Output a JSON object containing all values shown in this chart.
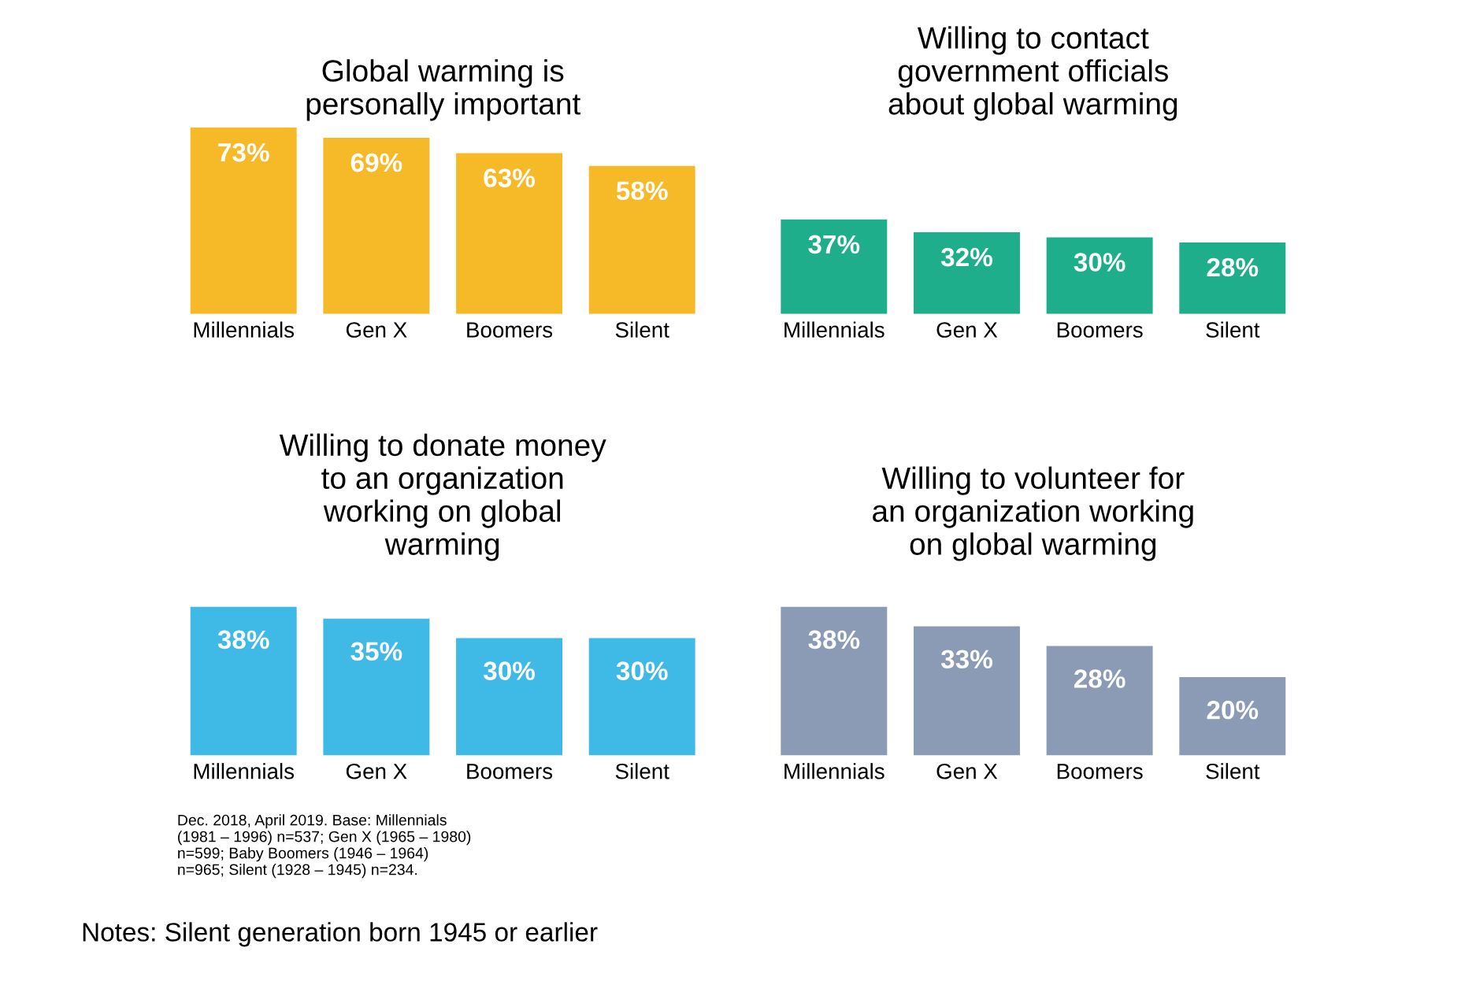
{
  "chart_data": [
    {
      "type": "bar",
      "title": "Global warming is\npersonally important",
      "categories": [
        "Millennials",
        "Gen X",
        "Boomers",
        "Silent"
      ],
      "values": [
        73,
        69,
        63,
        58
      ],
      "value_labels": [
        "73%",
        "69%",
        "63%",
        "58%"
      ],
      "color": "#f6b928",
      "grid": false,
      "legend": false
    },
    {
      "type": "bar",
      "title": "Willing to contact\ngovernment officials\nabout global warming",
      "categories": [
        "Millennials",
        "Gen X",
        "Boomers",
        "Silent"
      ],
      "values": [
        37,
        32,
        30,
        28
      ],
      "value_labels": [
        "37%",
        "32%",
        "30%",
        "28%"
      ],
      "color": "#1fae8c",
      "grid": false,
      "legend": false
    },
    {
      "type": "bar",
      "title": "Willing to donate money\nto an organization\nworking on global\nwarming",
      "categories": [
        "Millennials",
        "Gen X",
        "Boomers",
        "Silent"
      ],
      "values": [
        38,
        35,
        30,
        30
      ],
      "value_labels": [
        "38%",
        "35%",
        "30%",
        "30%"
      ],
      "color": "#3fb9e6",
      "grid": false,
      "legend": false,
      "annotations": [
        "Dec. 2018, April 2019. Base: Millennials\n(1981 – 1996) n=537; Gen X (1965 – 1980)\nn=599; Baby Boomers (1946 – 1964)\nn=965; Silent (1928 – 1945) n=234.",
        "Notes: Silent generation born 1945 or earlier"
      ]
    },
    {
      "type": "bar",
      "title": "Willing to volunteer for\nan organization working\non global warming",
      "categories": [
        "Millennials",
        "Gen X",
        "Boomers",
        "Silent"
      ],
      "values": [
        38,
        33,
        28,
        20
      ],
      "value_labels": [
        "38%",
        "33%",
        "28%",
        "20%"
      ],
      "color": "#8b9bb6",
      "grid": false,
      "legend": false
    }
  ]
}
